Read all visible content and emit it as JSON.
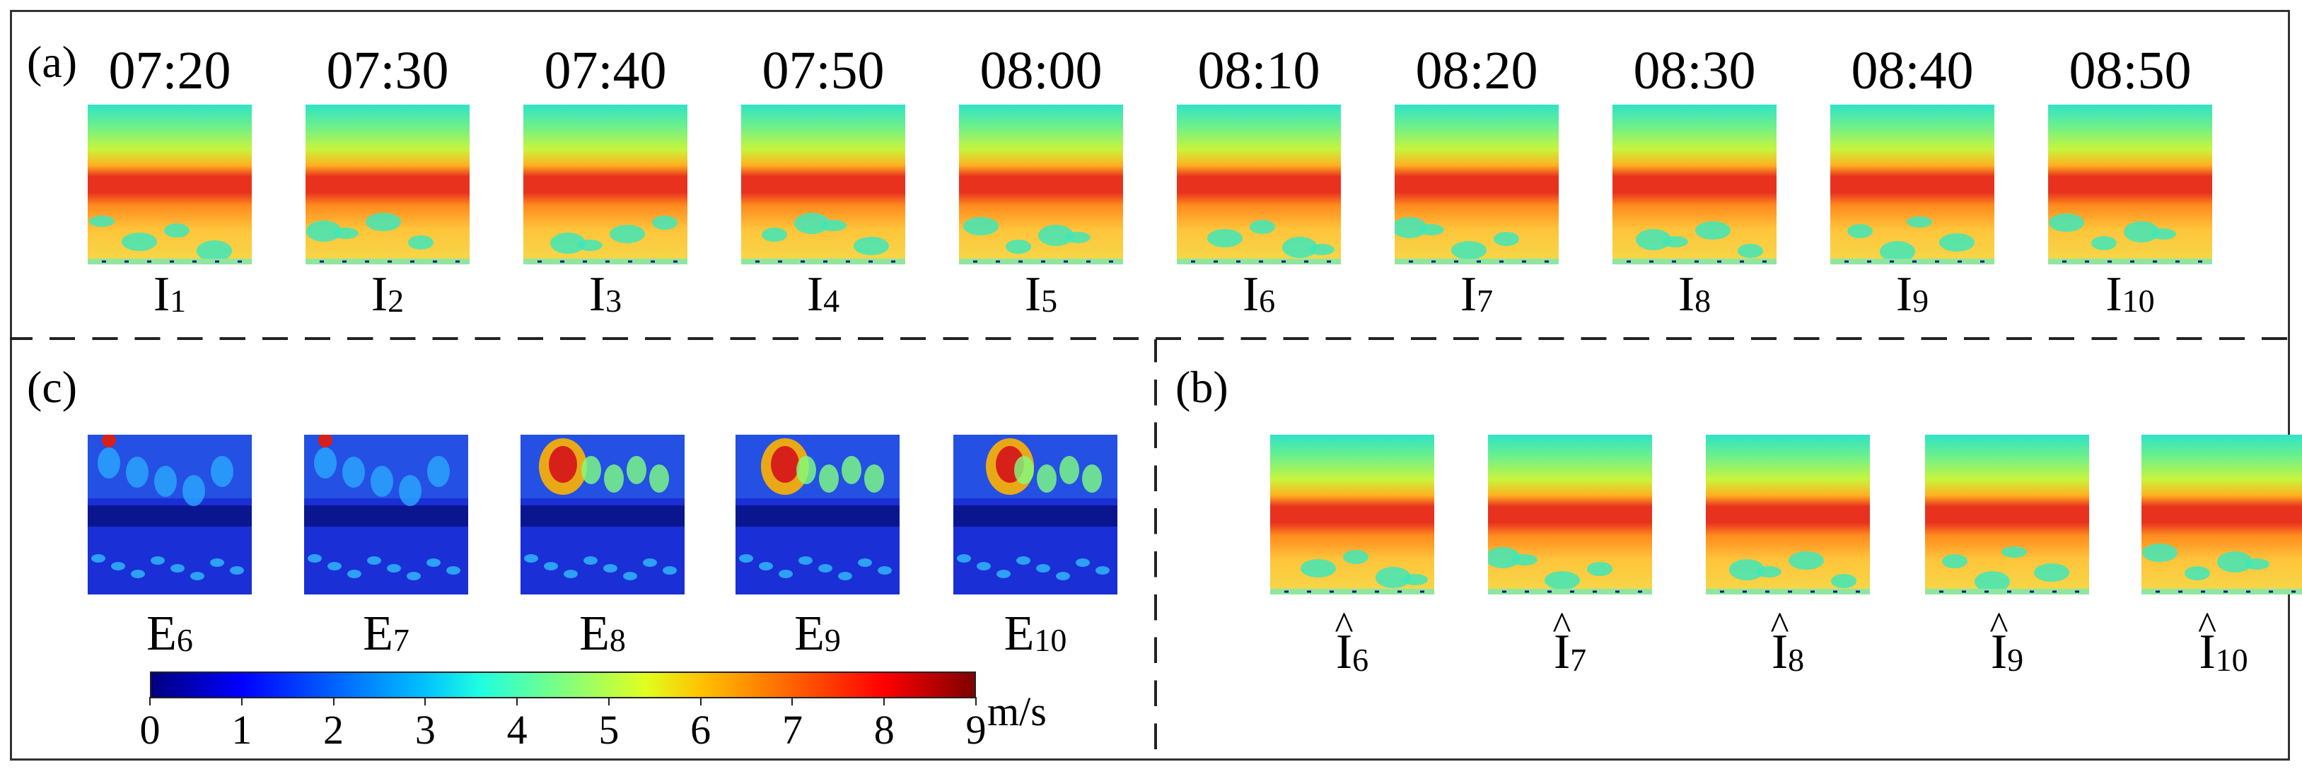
{
  "panels": {
    "a": "(a)",
    "b": "(b)",
    "c": "(c)"
  },
  "row_a": {
    "times": [
      "07:20",
      "07:30",
      "07:40",
      "07:50",
      "08:00",
      "08:10",
      "08:20",
      "08:30",
      "08:40",
      "08:50"
    ],
    "labels": [
      {
        "base": "I",
        "sub": "1"
      },
      {
        "base": "I",
        "sub": "2"
      },
      {
        "base": "I",
        "sub": "3"
      },
      {
        "base": "I",
        "sub": "4"
      },
      {
        "base": "I",
        "sub": "5"
      },
      {
        "base": "I",
        "sub": "6"
      },
      {
        "base": "I",
        "sub": "7"
      },
      {
        "base": "I",
        "sub": "8"
      },
      {
        "base": "I",
        "sub": "9"
      },
      {
        "base": "I",
        "sub": "10"
      }
    ]
  },
  "row_c": {
    "labels": [
      {
        "base": "E",
        "sub": "6"
      },
      {
        "base": "E",
        "sub": "7"
      },
      {
        "base": "E",
        "sub": "8"
      },
      {
        "base": "E",
        "sub": "9"
      },
      {
        "base": "E",
        "sub": "10"
      }
    ]
  },
  "row_b": {
    "labels": [
      {
        "base": "I",
        "hat": "^",
        "sub": "6"
      },
      {
        "base": "I",
        "hat": "^",
        "sub": "7"
      },
      {
        "base": "I",
        "hat": "^",
        "sub": "8"
      },
      {
        "base": "I",
        "hat": "^",
        "sub": "9"
      },
      {
        "base": "I",
        "hat": "^",
        "sub": "10"
      }
    ]
  },
  "colorbar": {
    "min": 0,
    "max": 9,
    "ticks": [
      "0",
      "1",
      "2",
      "3",
      "4",
      "5",
      "6",
      "7",
      "8",
      "9"
    ],
    "unit": "m/s",
    "colors": [
      "#00007f",
      "#0000ff",
      "#0060ff",
      "#00c0ff",
      "#1fffe0",
      "#7fff7f",
      "#e0ff1f",
      "#ffc000",
      "#ff6000",
      "#ff0000",
      "#7f0000"
    ]
  },
  "heatmap_palette": {
    "top": "#3be8a8",
    "band": "#e8321e",
    "mid": "#ffb020",
    "low": "#f5d94a",
    "error_bg": "#1a2fd6",
    "error_hot": "#d8201a"
  }
}
